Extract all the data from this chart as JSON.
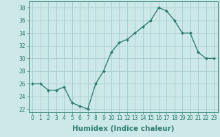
{
  "title": "",
  "xlabel": "Humidex (Indice chaleur)",
  "ylabel": "",
  "x": [
    0,
    1,
    2,
    3,
    4,
    5,
    6,
    7,
    8,
    9,
    10,
    11,
    12,
    13,
    14,
    15,
    16,
    17,
    18,
    19,
    20,
    21,
    22,
    23
  ],
  "y": [
    26,
    26,
    25,
    25,
    25.5,
    23,
    22.5,
    22,
    26,
    28,
    31,
    32.5,
    33,
    34,
    35,
    36,
    38,
    37.5,
    36,
    34,
    34,
    31,
    30,
    30
  ],
  "line_color": "#2e7d6e",
  "marker": "D",
  "marker_size": 2.0,
  "bg_color": "#cce8e8",
  "grid_color": "#aacfcf",
  "ylim": [
    21.5,
    39.0
  ],
  "yticks": [
    22,
    24,
    26,
    28,
    30,
    32,
    34,
    36,
    38
  ],
  "xticks": [
    0,
    1,
    2,
    3,
    4,
    5,
    6,
    7,
    8,
    9,
    10,
    11,
    12,
    13,
    14,
    15,
    16,
    17,
    18,
    19,
    20,
    21,
    22,
    23
  ],
  "tick_label_fontsize": 5.5,
  "xlabel_fontsize": 7.5,
  "line_width": 1.0
}
